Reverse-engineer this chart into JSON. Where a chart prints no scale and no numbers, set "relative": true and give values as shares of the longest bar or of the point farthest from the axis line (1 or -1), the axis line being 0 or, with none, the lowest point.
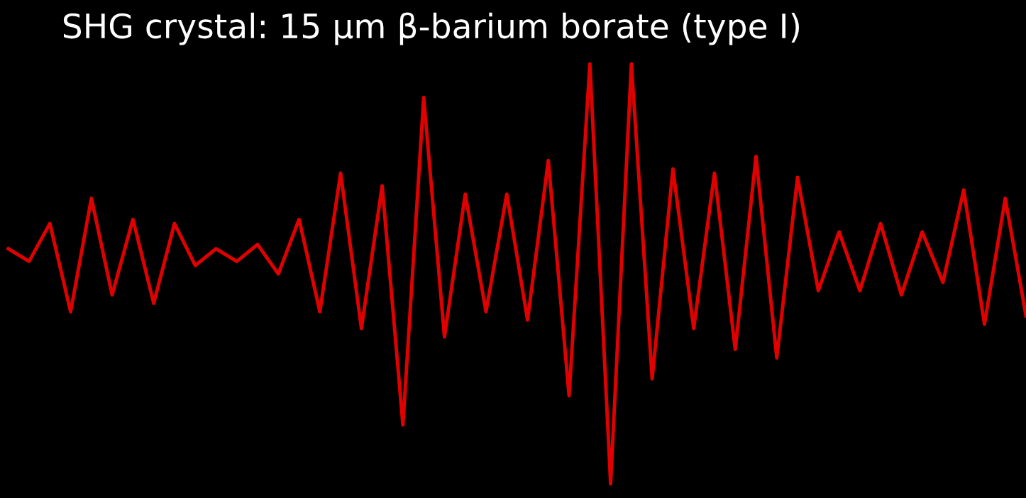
{
  "chart_data": {
    "type": "line",
    "title": "SHG crystal: 15 μm β-barium borate (type I)",
    "relative": true,
    "categories": [
      null,
      null,
      null,
      null,
      null,
      null,
      null,
      null,
      null,
      null,
      null,
      null,
      null,
      null,
      null,
      null,
      null,
      null,
      null,
      null,
      null,
      null,
      null,
      null,
      null,
      null,
      null,
      null,
      null,
      null,
      null,
      null,
      null,
      null,
      null,
      null,
      null,
      null,
      null,
      null,
      null,
      null,
      null,
      null,
      null,
      null,
      null,
      null,
      null,
      null
    ],
    "series": [
      {
        "color": "#e00000",
        "values": [
          0.56,
          0.53,
          0.62,
          0.41,
          0.68,
          0.45,
          0.63,
          0.43,
          0.62,
          0.52,
          0.56,
          0.53,
          0.57,
          0.5,
          0.63,
          0.41,
          0.74,
          0.37,
          0.71,
          0.14,
          0.92,
          0.35,
          0.69,
          0.41,
          0.69,
          0.39,
          0.77,
          0.21,
          1.0,
          0.0,
          1.0,
          0.25,
          0.75,
          0.37,
          0.74,
          0.32,
          0.78,
          0.3,
          0.73,
          0.46,
          0.6,
          0.46,
          0.62,
          0.45,
          0.6,
          0.48,
          0.7,
          0.38,
          0.68,
          0.4
        ]
      }
    ],
    "marker": "none",
    "line_style": "solid"
  }
}
